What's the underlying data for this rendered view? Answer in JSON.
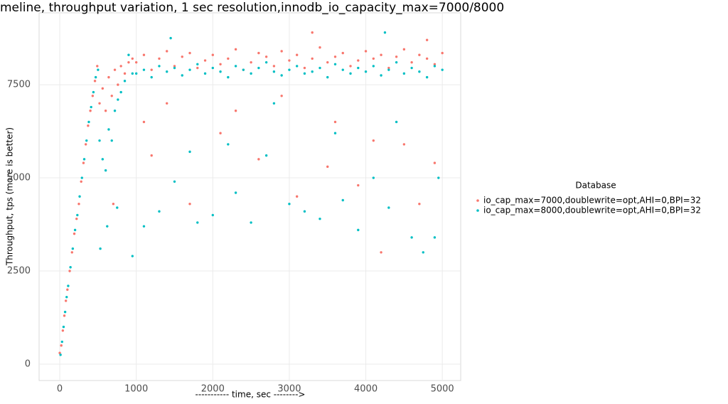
{
  "chart_data": {
    "type": "scatter",
    "title": "meline, throughput variation, 1 sec resolution,innodb_io_capacity_max=7000/8000",
    "x_label": "----------- time, sec -------->",
    "y_label": "Throughput, tps (more is better)",
    "legend_title": "Database",
    "xlim": [
      -270,
      5240
    ],
    "ylim": [
      -440,
      9430
    ],
    "xticks": [
      0,
      1000,
      2000,
      3000,
      4000,
      5000
    ],
    "yticks": [
      0,
      2500,
      5000,
      7500
    ],
    "grid": true,
    "legend": "right",
    "series": [
      {
        "name": "io_cap_max=7000,doublewrite=opt,AHI=0,BPI=32",
        "color": "#F8766D",
        "x": [
          0,
          20,
          40,
          60,
          80,
          100,
          130,
          160,
          190,
          220,
          250,
          280,
          310,
          340,
          370,
          400,
          430,
          460,
          490,
          520,
          560,
          600,
          640,
          680,
          720,
          760,
          800,
          850,
          900,
          950,
          1000,
          1100,
          1200,
          1300,
          1400,
          1500,
          1600,
          1700,
          1800,
          1900,
          2000,
          2100,
          2200,
          2300,
          2400,
          2500,
          2600,
          2700,
          2800,
          2900,
          3000,
          3100,
          3200,
          3300,
          3400,
          3500,
          3600,
          3700,
          3800,
          3900,
          4000,
          4100,
          4200,
          4300,
          4400,
          4500,
          4600,
          4700,
          4800,
          4900,
          5000,
          1200,
          1400,
          1700,
          2100,
          2600,
          3100,
          3300,
          3600,
          3900,
          4200,
          4500,
          4700,
          4900,
          700,
          1100,
          2300,
          2900,
          3500,
          4100,
          4800
        ],
        "values": [
          300,
          500,
          900,
          1300,
          1700,
          2000,
          2500,
          3000,
          3500,
          3900,
          4300,
          4900,
          5400,
          5900,
          6400,
          6800,
          7200,
          7600,
          8000,
          7000,
          7400,
          6800,
          7700,
          7200,
          7900,
          7500,
          8000,
          7800,
          8100,
          8200,
          8100,
          8300,
          7900,
          8200,
          8400,
          8000,
          8250,
          8350,
          7950,
          8150,
          8300,
          8050,
          8200,
          8450,
          7900,
          8100,
          8350,
          8250,
          8000,
          8400,
          8150,
          8300,
          7950,
          8200,
          8500,
          8100,
          8250,
          8350,
          8000,
          8150,
          8400,
          8200,
          8300,
          7950,
          8250,
          8450,
          8100,
          8300,
          8200,
          8050,
          8350,
          5600,
          7000,
          4300,
          6200,
          5500,
          4500,
          8900,
          6500,
          4800,
          3000,
          5900,
          4300,
          5400,
          4300,
          6500,
          6800,
          7200,
          5300,
          6000,
          8700
        ]
      },
      {
        "name": "io_cap_max=8000,doublewrite=opt,AHI=0,BPI=32",
        "color": "#00BFC4",
        "x": [
          10,
          30,
          50,
          70,
          90,
          110,
          140,
          170,
          200,
          230,
          260,
          290,
          320,
          350,
          380,
          410,
          440,
          470,
          500,
          520,
          560,
          600,
          640,
          680,
          720,
          760,
          800,
          850,
          900,
          950,
          1000,
          1100,
          1200,
          1300,
          1400,
          1500,
          1600,
          1700,
          1800,
          1900,
          2000,
          2100,
          2200,
          2300,
          2400,
          2500,
          2600,
          2700,
          2800,
          2900,
          3000,
          3100,
          3200,
          3300,
          3400,
          3500,
          3600,
          3700,
          3800,
          3900,
          4000,
          4100,
          4200,
          4300,
          4400,
          4500,
          4600,
          4700,
          4800,
          4900,
          5000,
          530,
          620,
          750,
          950,
          1100,
          1300,
          1500,
          1800,
          2000,
          2300,
          2500,
          2700,
          3000,
          3200,
          3400,
          3700,
          3900,
          4100,
          4300,
          4600,
          4750,
          4900,
          4950,
          1450,
          4250,
          2200,
          3600,
          1700,
          4400,
          2800
        ],
        "values": [
          250,
          600,
          1000,
          1400,
          1800,
          2100,
          2600,
          3100,
          3600,
          4000,
          4500,
          5000,
          5500,
          6000,
          6500,
          6900,
          7300,
          7700,
          7900,
          6000,
          5500,
          5200,
          6300,
          6000,
          6800,
          7100,
          7300,
          7600,
          8300,
          7800,
          7800,
          7900,
          7700,
          8000,
          7850,
          7950,
          7750,
          7900,
          8050,
          7800,
          7950,
          7850,
          7700,
          8000,
          7900,
          7800,
          7950,
          8100,
          7850,
          7750,
          7900,
          8000,
          7800,
          7850,
          7950,
          7700,
          8050,
          7900,
          7800,
          7950,
          7850,
          8000,
          7750,
          7900,
          8100,
          7800,
          7950,
          7850,
          7700,
          8000,
          7900,
          3100,
          3700,
          4200,
          2900,
          3700,
          4100,
          4900,
          3800,
          4000,
          4600,
          3800,
          5600,
          4300,
          4100,
          3900,
          4400,
          3600,
          5000,
          4200,
          3400,
          3000,
          3400,
          5000,
          8750,
          8900,
          5900,
          6200,
          5700,
          6500,
          7000
        ]
      }
    ]
  }
}
